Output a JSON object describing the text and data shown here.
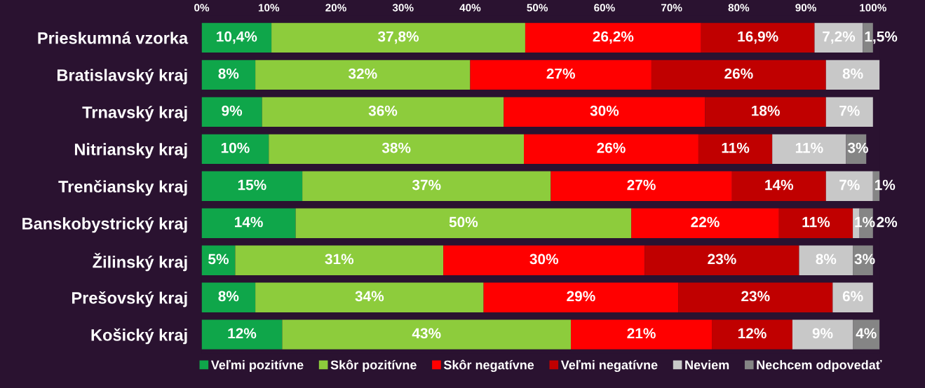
{
  "chart_data": {
    "type": "bar",
    "orientation": "horizontal",
    "stacked": true,
    "legend": "bottom",
    "grid": false,
    "categories": [
      "Prieskumná vzorka",
      "Bratislavský kraj",
      "Trnavský kraj",
      "Nitriansky kraj",
      "Trenčiansky kraj",
      "Banskobystrický kraj",
      "Žilinský kraj",
      "Prešovský kraj",
      "Košický kraj"
    ],
    "xlim": [
      0,
      101
    ],
    "xticks": [
      {
        "value": 0,
        "label": "0%"
      },
      {
        "value": 10,
        "label": "10%"
      },
      {
        "value": 20,
        "label": "20%"
      },
      {
        "value": 30,
        "label": "30%"
      },
      {
        "value": 40,
        "label": "40%"
      },
      {
        "value": 50,
        "label": "50%"
      },
      {
        "value": 60,
        "label": "60%"
      },
      {
        "value": 70,
        "label": "70%"
      },
      {
        "value": 80,
        "label": "80%"
      },
      {
        "value": 90,
        "label": "90%"
      },
      {
        "value": 100,
        "label": "100%"
      }
    ],
    "series": [
      {
        "name": "Veľmi pozitívne",
        "color": "#0fa64a",
        "values": [
          10.4,
          8,
          9,
          10,
          15,
          14,
          5,
          8,
          12
        ],
        "value_labels": [
          "10,4%",
          "8%",
          "9%",
          "10%",
          "15%",
          "14%",
          "5%",
          "8%",
          "12%"
        ]
      },
      {
        "name": "Skôr pozitívne",
        "color": "#8dcc3c",
        "values": [
          37.8,
          32,
          36,
          38,
          37,
          50,
          31,
          34,
          43
        ],
        "value_labels": [
          "37,8%",
          "32%",
          "36%",
          "38%",
          "37%",
          "50%",
          "31%",
          "34%",
          "43%"
        ]
      },
      {
        "name": "Skôr negatívne",
        "color": "#ff0000",
        "values": [
          26.2,
          27,
          30,
          26,
          27,
          22,
          30,
          29,
          21
        ],
        "value_labels": [
          "26,2%",
          "27%",
          "30%",
          "26%",
          "27%",
          "22%",
          "30%",
          "29%",
          "21%"
        ]
      },
      {
        "name": "Veľmi negatívne",
        "color": "#c00000",
        "values": [
          16.9,
          26,
          18,
          11,
          14,
          11,
          23,
          23,
          12
        ],
        "value_labels": [
          "16,9%",
          "26%",
          "18%",
          "11%",
          "14%",
          "11%",
          "23%",
          "23%",
          "12%"
        ]
      },
      {
        "name": "Neviem",
        "color": "#c8c8c8",
        "values": [
          7.2,
          8,
          7,
          11,
          7,
          1,
          8,
          6,
          9
        ],
        "value_labels": [
          "7,2%",
          "8%",
          "7%",
          "11%",
          "7%",
          "1%",
          "8%",
          "6%",
          "9%"
        ]
      },
      {
        "name": "Nechcem odpovedať",
        "color": "#858585",
        "values": [
          1.5,
          null,
          null,
          3,
          1,
          2,
          3,
          null,
          4
        ],
        "value_labels": [
          "1,5%",
          null,
          null,
          "3%",
          "1%",
          "2%",
          "3%",
          null,
          "4%"
        ]
      }
    ]
  }
}
